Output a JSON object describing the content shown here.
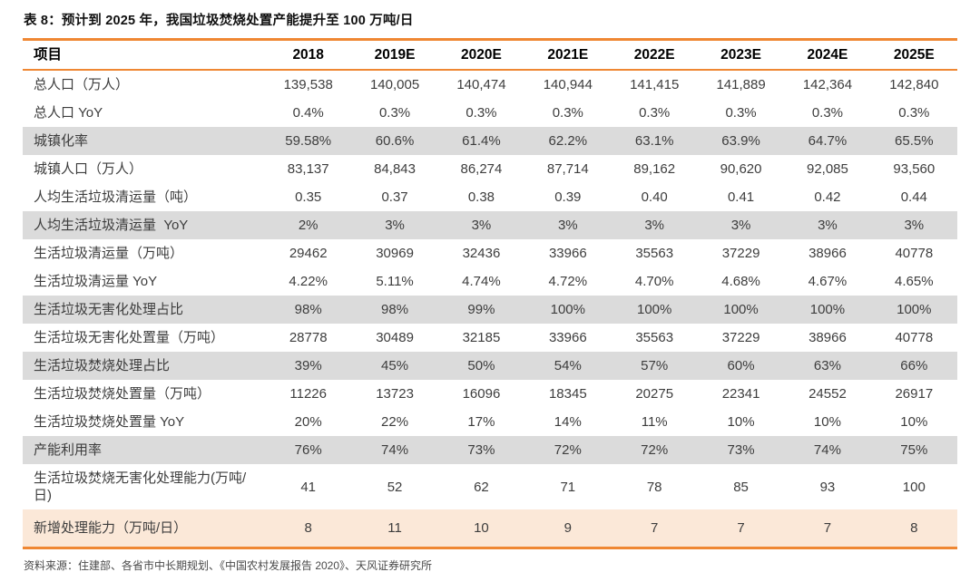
{
  "title": "表 8：预计到 2025 年，我国垃圾焚烧处置产能提升至 100 万吨/日",
  "source": "资料来源：住建部、各省市中长期规划、《中国农村发展报告 2020》、天风证券研究所",
  "colors": {
    "accent_orange": "#EF8733",
    "row_gray": "#DBDBDB",
    "row_peach": "#FBE8D8"
  },
  "table": {
    "header": [
      "项目",
      "2018",
      "2019E",
      "2020E",
      "2021E",
      "2022E",
      "2023E",
      "2024E",
      "2025E"
    ],
    "rows": [
      {
        "label": "总人口（万人）",
        "shade": "white",
        "values": [
          "139,538",
          "140,005",
          "140,474",
          "140,944",
          "141,415",
          "141,889",
          "142,364",
          "142,840"
        ]
      },
      {
        "label": "总人口 YoY",
        "shade": "white",
        "values": [
          "0.4%",
          "0.3%",
          "0.3%",
          "0.3%",
          "0.3%",
          "0.3%",
          "0.3%",
          "0.3%"
        ]
      },
      {
        "label": "城镇化率",
        "shade": "gray",
        "values": [
          "59.58%",
          "60.6%",
          "61.4%",
          "62.2%",
          "63.1%",
          "63.9%",
          "64.7%",
          "65.5%"
        ]
      },
      {
        "label": "城镇人口（万人）",
        "shade": "white",
        "values": [
          "83,137",
          "84,843",
          "86,274",
          "87,714",
          "89,162",
          "90,620",
          "92,085",
          "93,560"
        ]
      },
      {
        "label": "人均生活垃圾清运量（吨）",
        "shade": "white",
        "values": [
          "0.35",
          "0.37",
          "0.38",
          "0.39",
          "0.40",
          "0.41",
          "0.42",
          "0.44"
        ]
      },
      {
        "label": "人均生活垃圾清运量  YoY",
        "shade": "gray",
        "values": [
          "2%",
          "3%",
          "3%",
          "3%",
          "3%",
          "3%",
          "3%",
          "3%"
        ]
      },
      {
        "label": "生活垃圾清运量（万吨）",
        "shade": "white",
        "values": [
          "29462",
          "30969",
          "32436",
          "33966",
          "35563",
          "37229",
          "38966",
          "40778"
        ]
      },
      {
        "label": "生活垃圾清运量 YoY",
        "shade": "white",
        "values": [
          "4.22%",
          "5.11%",
          "4.74%",
          "4.72%",
          "4.70%",
          "4.68%",
          "4.67%",
          "4.65%"
        ]
      },
      {
        "label": "生活垃圾无害化处理占比",
        "shade": "gray",
        "values": [
          "98%",
          "98%",
          "99%",
          "100%",
          "100%",
          "100%",
          "100%",
          "100%"
        ]
      },
      {
        "label": "生活垃圾无害化处置量（万吨）",
        "shade": "white",
        "values": [
          "28778",
          "30489",
          "32185",
          "33966",
          "35563",
          "37229",
          "38966",
          "40778"
        ]
      },
      {
        "label": "生活垃圾焚烧处理占比",
        "shade": "gray",
        "values": [
          "39%",
          "45%",
          "50%",
          "54%",
          "57%",
          "60%",
          "63%",
          "66%"
        ]
      },
      {
        "label": "生活垃圾焚烧处置量（万吨）",
        "shade": "white",
        "values": [
          "11226",
          "13723",
          "16096",
          "18345",
          "20275",
          "22341",
          "24552",
          "26917"
        ]
      },
      {
        "label": "生活垃圾焚烧处置量 YoY",
        "shade": "white",
        "values": [
          "20%",
          "22%",
          "17%",
          "14%",
          "11%",
          "10%",
          "10%",
          "10%"
        ]
      },
      {
        "label": "产能利用率",
        "shade": "gray",
        "values": [
          "76%",
          "74%",
          "73%",
          "72%",
          "72%",
          "73%",
          "74%",
          "75%"
        ]
      },
      {
        "label": "生活垃圾焚烧无害化处理能力(万吨/日)",
        "shade": "white",
        "values": [
          "41",
          "52",
          "62",
          "71",
          "78",
          "85",
          "93",
          "100"
        ]
      },
      {
        "label": "新增处理能力（万吨/日）",
        "shade": "peach",
        "values": [
          "8",
          "11",
          "10",
          "9",
          "7",
          "7",
          "7",
          "8"
        ]
      }
    ]
  }
}
